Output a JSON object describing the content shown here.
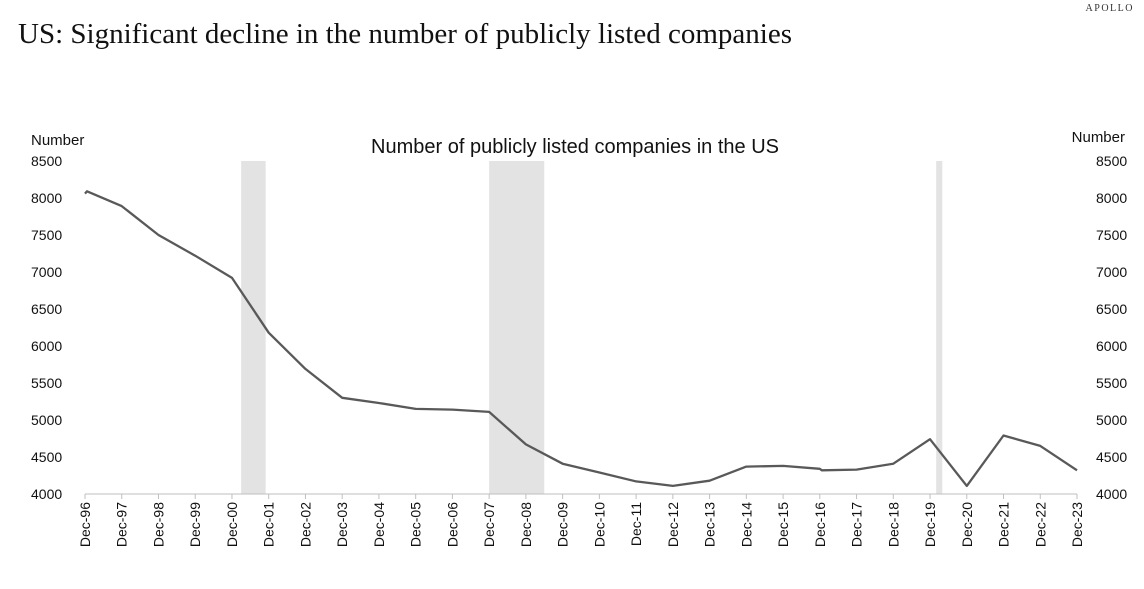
{
  "header": {
    "brand": "APOLLO",
    "title": "US: Significant decline in the number of publicly listed companies"
  },
  "colors": {
    "line": "#595959",
    "recession": "#e3e3e3",
    "axis": "#bfbfbf"
  },
  "chart_data": {
    "type": "line",
    "title": "Number of publicly listed companies in the US",
    "ylabel_left": "Number",
    "ylabel_right": "Number",
    "ylim": [
      4000,
      8500
    ],
    "yticks": [
      4000,
      4500,
      5000,
      5500,
      6000,
      6500,
      7000,
      7500,
      8000,
      8500
    ],
    "x_labels": [
      "Dec-96",
      "Dec-97",
      "Dec-98",
      "Dec-99",
      "Dec-00",
      "Dec-01",
      "Dec-02",
      "Dec-03",
      "Dec-04",
      "Dec-05",
      "Dec-06",
      "Dec-07",
      "Dec-08",
      "Dec-09",
      "Dec-10",
      "Dec-11",
      "Dec-12",
      "Dec-13",
      "Dec-14",
      "Dec-15",
      "Dec-16",
      "Dec-17",
      "Dec-18",
      "Dec-19",
      "Dec-20",
      "Dec-21",
      "Dec-22",
      "Dec-23"
    ],
    "series": [
      {
        "points": [
          {
            "x": "Dec-96",
            "y": 8060
          },
          {
            "x": "Dec-96",
            "y": 8090
          },
          {
            "x": "Dec-97",
            "y": 7890
          },
          {
            "x": "Dec-98",
            "y": 7500
          },
          {
            "x": "Dec-99",
            "y": 7220
          },
          {
            "x": "Dec-00",
            "y": 6920
          },
          {
            "x": "Dec-01",
            "y": 6180
          },
          {
            "x": "Dec-02",
            "y": 5690
          },
          {
            "x": "Dec-03",
            "y": 5300
          },
          {
            "x": "Dec-04",
            "y": 5230
          },
          {
            "x": "Dec-05",
            "y": 5150
          },
          {
            "x": "Dec-06",
            "y": 5140
          },
          {
            "x": "Dec-07",
            "y": 5110
          },
          {
            "x": "Dec-08",
            "y": 4670
          },
          {
            "x": "Dec-09",
            "y": 4410
          },
          {
            "x": "Dec-10",
            "y": 4290
          },
          {
            "x": "Dec-11",
            "y": 4170
          },
          {
            "x": "Dec-12",
            "y": 4110
          },
          {
            "x": "Dec-13",
            "y": 4180
          },
          {
            "x": "Dec-14",
            "y": 4370
          },
          {
            "x": "Dec-15",
            "y": 4380
          },
          {
            "x": "Dec-16",
            "y": 4340
          },
          {
            "x": "Dec-16",
            "y": 4320
          },
          {
            "x": "Dec-17",
            "y": 4330
          },
          {
            "x": "Dec-18",
            "y": 4410
          },
          {
            "x": "Dec-19",
            "y": 4740
          },
          {
            "x": "Dec-20",
            "y": 4110
          },
          {
            "x": "Dec-21",
            "y": 4790
          },
          {
            "x": "Dec-22",
            "y": 4650
          },
          {
            "x": "Dec-23",
            "y": 4320
          }
        ]
      }
    ],
    "shaded_periods": [
      {
        "from": "Mar-01",
        "to": "Nov-01"
      },
      {
        "from": "Dec-07",
        "to": "Jun-09"
      },
      {
        "from": "Feb-20",
        "to": "Apr-20"
      }
    ],
    "grid": false,
    "legend": "none"
  }
}
